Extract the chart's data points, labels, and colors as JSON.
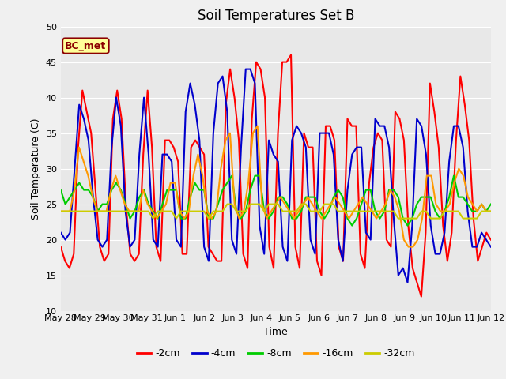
{
  "title": "Soil Temperatures Set B",
  "xlabel": "Time",
  "ylabel": "Soil Temperature (C)",
  "ylim": [
    10,
    50
  ],
  "annotation": "BC_met",
  "fig_bg": "#f0f0f0",
  "ax_bg": "#e8e8e8",
  "grid_color": "white",
  "series_colors": {
    "cm2": "#ff0000",
    "cm4": "#0000cc",
    "cm8": "#00cc00",
    "cm16": "#ff9900",
    "cm32": "#cccc00"
  },
  "series_lw": 1.5,
  "xtick_labels": [
    "May 28",
    "May 29",
    "May 30",
    "May 31",
    "Jun 1",
    "Jun 2",
    "Jun 3",
    "Jun 4",
    "Jun 5",
    "Jun 6",
    "Jun 7",
    "Jun 8",
    "Jun 9",
    "Jun 10",
    "Jun 11",
    "Jun 12"
  ],
  "legend_labels": [
    "-2cm",
    "-4cm",
    "-8cm",
    "-16cm",
    "-32cm"
  ],
  "cm2": [
    19,
    17,
    16,
    18,
    33,
    41,
    38,
    35,
    27,
    19,
    17,
    18,
    37,
    41,
    37,
    25,
    18,
    17,
    18,
    32,
    41,
    33,
    19,
    17,
    34,
    34,
    33,
    31,
    18,
    18,
    33,
    34,
    33,
    32,
    19,
    18,
    17,
    17,
    39,
    44,
    40,
    34,
    18,
    16,
    37,
    45,
    44,
    40,
    19,
    16,
    35,
    45,
    45,
    46,
    19,
    16,
    35,
    33,
    33,
    17,
    15,
    36,
    36,
    34,
    19,
    17,
    37,
    36,
    36,
    18,
    16,
    28,
    33,
    35,
    34,
    20,
    19,
    38,
    37,
    34,
    22,
    16,
    14,
    12,
    21,
    42,
    38,
    33,
    22,
    17,
    21,
    34,
    43,
    39,
    34,
    23,
    17,
    19,
    21,
    20
  ],
  "cm4": [
    21,
    20,
    21,
    30,
    39,
    37,
    34,
    26,
    20,
    19,
    20,
    33,
    40,
    36,
    24,
    19,
    20,
    32,
    40,
    32,
    20,
    19,
    32,
    32,
    31,
    20,
    19,
    38,
    42,
    39,
    34,
    19,
    17,
    35,
    42,
    43,
    38,
    20,
    18,
    33,
    44,
    44,
    42,
    22,
    18,
    34,
    32,
    31,
    19,
    17,
    34,
    36,
    35,
    33,
    20,
    18,
    35,
    35,
    35,
    32,
    20,
    17,
    27,
    32,
    33,
    33,
    21,
    20,
    37,
    36,
    36,
    33,
    23,
    15,
    16,
    14,
    22,
    37,
    36,
    32,
    22,
    18,
    18,
    21,
    31,
    36,
    36,
    33,
    24,
    19,
    19,
    21,
    20,
    19
  ],
  "cm8": [
    27,
    25,
    26,
    27,
    28,
    27,
    27,
    26,
    24,
    25,
    25,
    27,
    28,
    27,
    25,
    23,
    24,
    26,
    27,
    25,
    24,
    23,
    25,
    27,
    27,
    27,
    23,
    23,
    26,
    28,
    27,
    27,
    23,
    23,
    25,
    27,
    28,
    29,
    24,
    23,
    24,
    27,
    29,
    29,
    24,
    23,
    24,
    26,
    26,
    25,
    23,
    23,
    24,
    26,
    26,
    26,
    24,
    23,
    24,
    26,
    27,
    26,
    23,
    22,
    23,
    25,
    27,
    27,
    24,
    23,
    24,
    27,
    27,
    26,
    23,
    22,
    23,
    25,
    26,
    26,
    26,
    24,
    23,
    24,
    26,
    29,
    26,
    26,
    25,
    24,
    24,
    25,
    24,
    25
  ],
  "cm16": [
    24,
    24,
    24,
    27,
    33,
    31,
    29,
    26,
    24,
    24,
    24,
    27,
    29,
    27,
    25,
    24,
    24,
    24,
    27,
    25,
    24,
    23,
    24,
    25,
    28,
    28,
    24,
    23,
    24,
    29,
    32,
    29,
    24,
    23,
    24,
    30,
    34,
    35,
    25,
    23,
    24,
    28,
    35,
    36,
    25,
    23,
    24,
    25,
    26,
    25,
    24,
    23,
    24,
    25,
    26,
    25,
    24,
    23,
    24,
    25,
    26,
    25,
    24,
    23,
    24,
    25,
    26,
    25,
    24,
    23,
    24,
    25,
    27,
    26,
    24,
    20,
    19,
    19,
    20,
    23,
    29,
    29,
    25,
    24,
    24,
    25,
    28,
    30,
    29,
    26,
    25,
    24,
    25,
    24,
    24
  ],
  "cm32": [
    24,
    24,
    24,
    24,
    24,
    24,
    24,
    24,
    24,
    24,
    24,
    24,
    24,
    24,
    24,
    24,
    24,
    24,
    24,
    24,
    23,
    24,
    24,
    24,
    24,
    23,
    24,
    24,
    24,
    24,
    24,
    24,
    23,
    24,
    24,
    24,
    25,
    25,
    24,
    24,
    24,
    25,
    25,
    25,
    24,
    25,
    25,
    25,
    24,
    24,
    24,
    24,
    25,
    25,
    24,
    24,
    24,
    25,
    25,
    25,
    24,
    24,
    24,
    24,
    24,
    24,
    24,
    24,
    24,
    24,
    24,
    24,
    24,
    23,
    23,
    23,
    23,
    23,
    24,
    24,
    23,
    23,
    23,
    24,
    24,
    24,
    24,
    23,
    23,
    23,
    23,
    24,
    24,
    24
  ]
}
